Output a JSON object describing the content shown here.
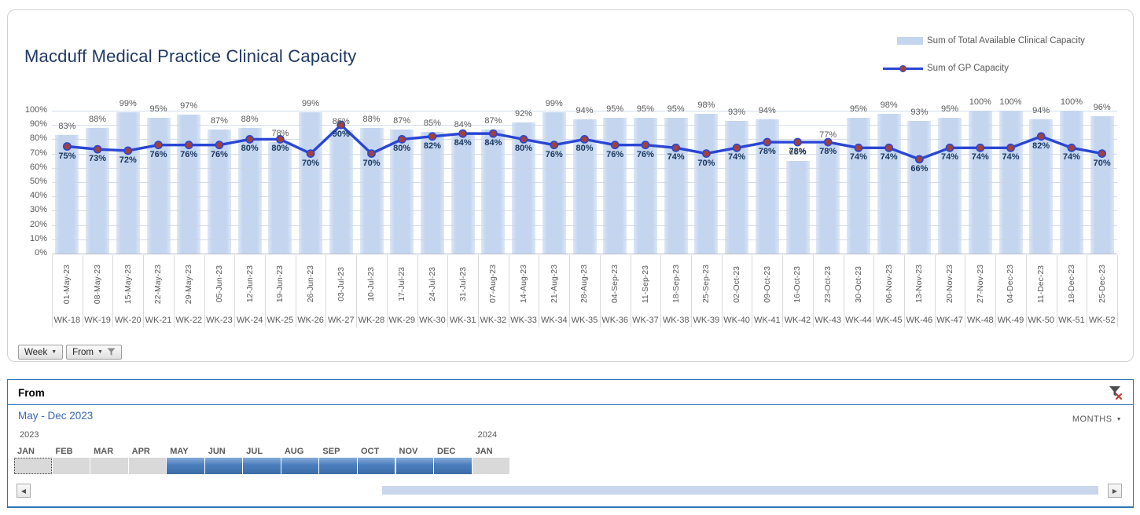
{
  "chart": {
    "title": "Macduff Medical Practice Clinical Capacity",
    "legend": [
      {
        "label": "Sum of Total Available Clinical Capacity",
        "type": "bar"
      },
      {
        "label": "Sum of GP Capacity",
        "type": "line"
      }
    ],
    "field_buttons": [
      {
        "label": "Week",
        "filtered": false
      },
      {
        "label": "From",
        "filtered": true
      }
    ]
  },
  "chart_data": {
    "type": "bar+line",
    "title": "Macduff Medical Practice Clinical Capacity",
    "categories": [
      "01-May-23",
      "08-May-23",
      "15-May-23",
      "22-May-23",
      "29-May-23",
      "05-Jun-23",
      "12-Jun-23",
      "19-Jun-23",
      "26-Jun-23",
      "03-Jul-23",
      "10-Jul-23",
      "17-Jul-23",
      "24-Jul-23",
      "31-Jul-23",
      "07-Aug-23",
      "14-Aug-23",
      "21-Aug-23",
      "28-Aug-23",
      "04-Sep-23",
      "11-Sep-23",
      "18-Sep-23",
      "25-Sep-23",
      "02-Oct-23",
      "09-Oct-23",
      "16-Oct-23",
      "23-Oct-23",
      "30-Oct-23",
      "06-Nov-23",
      "13-Nov-23",
      "20-Nov-23",
      "27-Nov-23",
      "04-Dec-23",
      "11-Dec-23",
      "18-Dec-23",
      "25-Dec-23"
    ],
    "category_group_labels": [
      "WK-18",
      "WK-19",
      "WK-20",
      "WK-21",
      "WK-22",
      "WK-23",
      "WK-24",
      "WK-25",
      "WK-26",
      "WK-27",
      "WK-28",
      "WK-29",
      "WK-30",
      "WK-31",
      "WK-32",
      "WK-33",
      "WK-34",
      "WK-35",
      "WK-36",
      "WK-37",
      "WK-38",
      "WK-39",
      "WK-40",
      "WK-41",
      "WK-42",
      "WK-43",
      "WK-44",
      "WK-45",
      "WK-46",
      "WK-47",
      "WK-48",
      "WK-49",
      "WK-50",
      "WK-51",
      "WK-52"
    ],
    "series": [
      {
        "name": "Sum of Total Available Clinical Capacity",
        "type": "bar",
        "values": [
          83,
          88,
          99,
          95,
          97,
          87,
          88,
          78,
          99,
          86,
          88,
          87,
          85,
          84,
          87,
          92,
          99,
          94,
          95,
          95,
          95,
          98,
          93,
          94,
          65,
          77,
          95,
          98,
          93,
          95,
          100,
          100,
          94,
          100,
          96
        ]
      },
      {
        "name": "Sum of GP Capacity",
        "type": "line",
        "values": [
          75,
          73,
          72,
          76,
          76,
          76,
          80,
          80,
          70,
          90,
          70,
          80,
          82,
          84,
          84,
          80,
          76,
          80,
          76,
          76,
          74,
          70,
          74,
          78,
          78,
          78,
          74,
          74,
          66,
          74,
          74,
          74,
          82,
          74,
          70
        ]
      }
    ],
    "value_suffix": "%",
    "ylim": [
      0,
      100
    ],
    "y_ticks": [
      "0%",
      "10%",
      "20%",
      "30%",
      "40%",
      "50%",
      "60%",
      "70%",
      "80%",
      "90%",
      "100%"
    ],
    "grid": true,
    "legend_position": "top-right"
  },
  "timeline": {
    "title": "From",
    "selection_label": "May - Dec 2023",
    "period_button": "MONTHS",
    "years": [
      {
        "label": "2023",
        "month_index": 0
      },
      {
        "label": "2024",
        "month_index": 12
      }
    ],
    "months": [
      "JAN",
      "FEB",
      "MAR",
      "APR",
      "MAY",
      "JUN",
      "JUL",
      "AUG",
      "SEP",
      "OCT",
      "NOV",
      "DEC",
      "JAN"
    ],
    "selected_range": [
      4,
      11
    ],
    "focused_index": 0
  },
  "colors": {
    "title": "#1f3864",
    "bar_fill": "#c4d5ef",
    "line": "#2a46d4",
    "marker": "#a2403c",
    "bar_label": "#595959",
    "line_label": "#17365d",
    "axis_text": "#595959",
    "timeline_border": "#2e75b6",
    "timeline_selected": "#4377ae",
    "selection_label_color": "#3a68b0"
  }
}
